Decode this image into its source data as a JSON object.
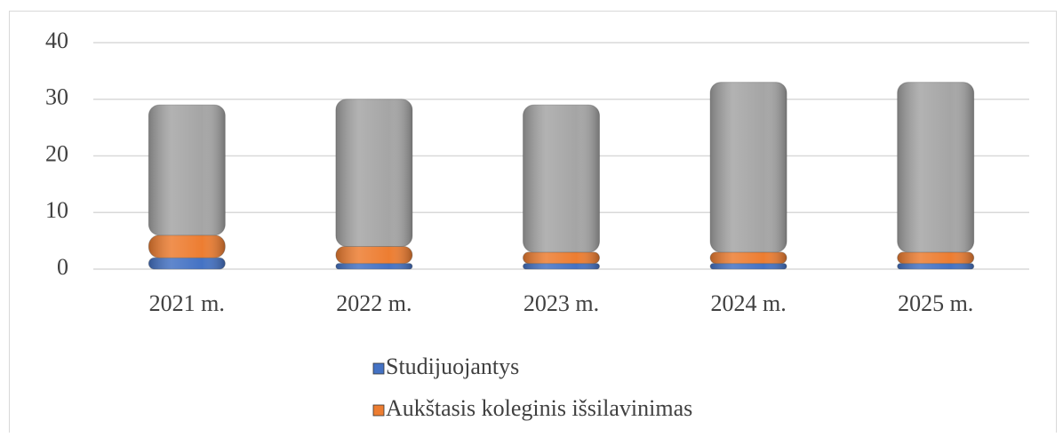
{
  "chart_data": {
    "type": "stacked_bar",
    "categories": [
      "2021 m.",
      "2022 m.",
      "2023 m.",
      "2024 m.",
      "2025 m."
    ],
    "series": [
      {
        "name": "Studijuojantys",
        "color": "#4472c4",
        "values": [
          2,
          1,
          1,
          1,
          1
        ]
      },
      {
        "name": "Aukštasis koleginis išsilavinimas",
        "color": "#ed7d31",
        "values": [
          4,
          3,
          2,
          2,
          2
        ]
      },
      {
        "color": "#a5a5a5",
        "values": [
          23,
          26,
          26,
          30,
          30
        ]
      }
    ],
    "ylim": [
      0,
      40
    ],
    "yticks": [
      0,
      10,
      20,
      30,
      40
    ],
    "grid": true,
    "legend": "bottom"
  }
}
